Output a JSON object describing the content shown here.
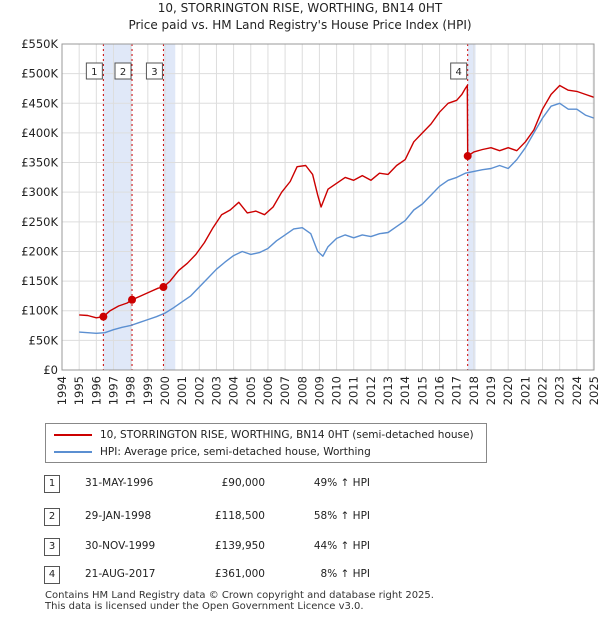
{
  "chart_data": {
    "type": "line",
    "title": "10, STORRINGTON RISE, WORTHING, BN14 0HT",
    "subtitle": "Price paid vs. HM Land Registry's House Price Index (HPI)",
    "xlabel": "",
    "ylabel": "",
    "xlim": [
      1994,
      2025
    ],
    "ylim": [
      0,
      550000
    ],
    "x_ticks": [
      "1994",
      "1995",
      "1996",
      "1997",
      "1998",
      "1999",
      "2000",
      "2001",
      "2002",
      "2003",
      "2004",
      "2005",
      "2006",
      "2007",
      "2008",
      "2009",
      "2010",
      "2011",
      "2012",
      "2013",
      "2014",
      "2015",
      "2016",
      "2017",
      "2018",
      "2019",
      "2020",
      "2021",
      "2022",
      "2023",
      "2024",
      "2025"
    ],
    "y_ticks": [
      "£0",
      "£50K",
      "£100K",
      "£150K",
      "£200K",
      "£250K",
      "£300K",
      "£350K",
      "£400K",
      "£450K",
      "£500K",
      "£550K"
    ],
    "y_tick_values": [
      0,
      50000,
      100000,
      150000,
      200000,
      250000,
      300000,
      350000,
      400000,
      450000,
      500000,
      550000
    ],
    "colors": {
      "property": "#cc0000",
      "hpi": "#5b8fd1",
      "shade": "#e0e8f8",
      "grid": "#dddddd",
      "vline": "#cc0000"
    },
    "series": [
      {
        "name": "10, STORRINGTON RISE, WORTHING, BN14 0HT (semi-detached house)",
        "color": "#cc0000",
        "x": [
          1995.0,
          1995.5,
          1996.0,
          1996.41,
          1996.8,
          1997.3,
          1997.8,
          1998.08,
          1998.6,
          1999.2,
          1999.6,
          1999.91,
          2000.3,
          2000.8,
          2001.3,
          2001.8,
          2002.3,
          2002.8,
          2003.3,
          2003.8,
          2004.3,
          2004.8,
          2005.3,
          2005.8,
          2006.3,
          2006.8,
          2007.3,
          2007.7,
          2008.2,
          2008.6,
          2008.9,
          2009.1,
          2009.5,
          2010.0,
          2010.5,
          2011.0,
          2011.5,
          2012.0,
          2012.5,
          2013.0,
          2013.5,
          2014.0,
          2014.5,
          2015.0,
          2015.5,
          2016.0,
          2016.5,
          2017.0,
          2017.3,
          2017.5,
          2017.62,
          2017.64,
          2018.0,
          2018.5,
          2019.0,
          2019.5,
          2020.0,
          2020.5,
          2021.0,
          2021.5,
          2022.0,
          2022.5,
          2023.0,
          2023.5,
          2024.0,
          2024.5,
          2025.0
        ],
        "y": [
          93000,
          92000,
          88000,
          90000,
          100000,
          108000,
          113000,
          118500,
          125000,
          133000,
          138000,
          139950,
          150000,
          168000,
          180000,
          195000,
          215000,
          240000,
          262000,
          270000,
          283000,
          265000,
          268000,
          262000,
          275000,
          300000,
          318000,
          343000,
          345000,
          330000,
          295000,
          275000,
          305000,
          315000,
          325000,
          320000,
          328000,
          320000,
          332000,
          330000,
          345000,
          355000,
          385000,
          400000,
          415000,
          435000,
          450000,
          455000,
          465000,
          475000,
          480000,
          361000,
          368000,
          372000,
          375000,
          370000,
          375000,
          370000,
          385000,
          405000,
          440000,
          465000,
          480000,
          472000,
          470000,
          465000,
          460000
        ]
      },
      {
        "name": "HPI: Average price, semi-detached house, Worthing",
        "color": "#5b8fd1",
        "x": [
          1995.0,
          1995.5,
          1996.0,
          1996.5,
          1997.0,
          1997.5,
          1998.0,
          1998.5,
          1999.0,
          1999.5,
          2000.0,
          2000.5,
          2001.0,
          2001.5,
          2002.0,
          2002.5,
          2003.0,
          2003.5,
          2004.0,
          2004.5,
          2005.0,
          2005.5,
          2006.0,
          2006.5,
          2007.0,
          2007.5,
          2008.0,
          2008.5,
          2008.9,
          2009.2,
          2009.5,
          2010.0,
          2010.5,
          2011.0,
          2011.5,
          2012.0,
          2012.5,
          2013.0,
          2013.5,
          2014.0,
          2014.5,
          2015.0,
          2015.5,
          2016.0,
          2016.5,
          2017.0,
          2017.5,
          2018.0,
          2018.5,
          2019.0,
          2019.5,
          2020.0,
          2020.5,
          2021.0,
          2021.5,
          2022.0,
          2022.5,
          2023.0,
          2023.5,
          2024.0,
          2024.5,
          2025.0
        ],
        "y": [
          64000,
          63000,
          62000,
          63000,
          68000,
          72000,
          75000,
          80000,
          85000,
          90000,
          96000,
          105000,
          115000,
          125000,
          140000,
          155000,
          170000,
          182000,
          193000,
          200000,
          195000,
          198000,
          205000,
          218000,
          228000,
          238000,
          240000,
          230000,
          200000,
          192000,
          208000,
          222000,
          228000,
          223000,
          228000,
          225000,
          230000,
          232000,
          242000,
          252000,
          270000,
          280000,
          295000,
          310000,
          320000,
          325000,
          332000,
          335000,
          338000,
          340000,
          345000,
          340000,
          355000,
          375000,
          400000,
          425000,
          445000,
          450000,
          440000,
          440000,
          430000,
          425000
        ]
      }
    ],
    "sales": [
      {
        "label": "1",
        "x": 1996.41,
        "y": 90000
      },
      {
        "label": "2",
        "x": 1998.08,
        "y": 118500
      },
      {
        "label": "3",
        "x": 1999.91,
        "y": 139950
      },
      {
        "label": "4",
        "x": 2017.64,
        "y": 361000
      }
    ],
    "shaded_ranges": [
      [
        1996.41,
        1998.08
      ],
      [
        1999.91,
        2000.6
      ],
      [
        2017.64,
        2018.1
      ]
    ]
  },
  "legend": {
    "property_label": "10, STORRINGTON RISE, WORTHING, BN14 0HT (semi-detached house)",
    "hpi_label": "HPI: Average price, semi-detached house, Worthing"
  },
  "transactions": [
    {
      "num": "1",
      "date": "31-MAY-1996",
      "price": "£90,000",
      "hpi": "49% ↑ HPI"
    },
    {
      "num": "2",
      "date": "29-JAN-1998",
      "price": "£118,500",
      "hpi": "58% ↑ HPI"
    },
    {
      "num": "3",
      "date": "30-NOV-1999",
      "price": "£139,950",
      "hpi": "44% ↑ HPI"
    },
    {
      "num": "4",
      "date": "21-AUG-2017",
      "price": "£361,000",
      "hpi": "8% ↑ HPI"
    }
  ],
  "footer": {
    "line1": "Contains HM Land Registry data © Crown copyright and database right 2025.",
    "line2": "This data is licensed under the Open Government Licence v3.0."
  }
}
